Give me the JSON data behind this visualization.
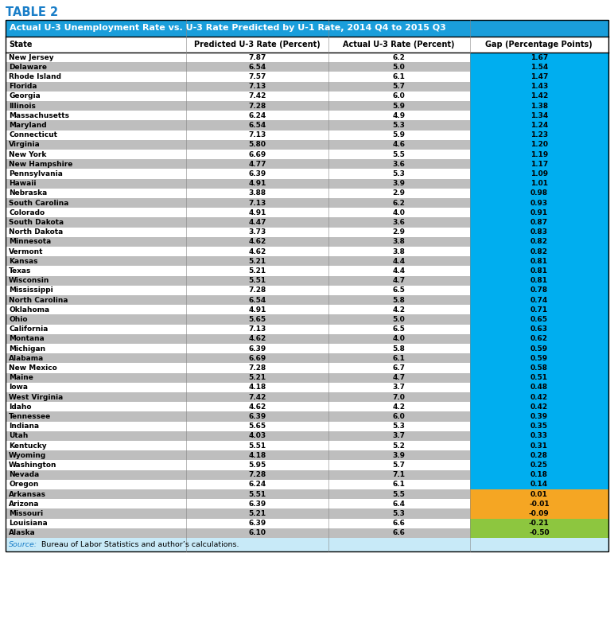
{
  "table_label": "TABLE 2",
  "title": "Actual U-3 Unemployment Rate vs. U-3 Rate Predicted by U-1 Rate, 2014 Q4 to 2015 Q3",
  "col_headers": [
    "State",
    "Predicted U-3 Rate (Percent)",
    "Actual U-3 Rate (Percent)",
    "Gap (Percentage Points)"
  ],
  "source": "Source: Bureau of Labor Statistics and author’s calculations.",
  "rows": [
    [
      "New Jersey",
      "7.87",
      "6.2",
      "1.67"
    ],
    [
      "Delaware",
      "6.54",
      "5.0",
      "1.54"
    ],
    [
      "Rhode Island",
      "7.57",
      "6.1",
      "1.47"
    ],
    [
      "Florida",
      "7.13",
      "5.7",
      "1.43"
    ],
    [
      "Georgia",
      "7.42",
      "6.0",
      "1.42"
    ],
    [
      "Illinois",
      "7.28",
      "5.9",
      "1.38"
    ],
    [
      "Massachusetts",
      "6.24",
      "4.9",
      "1.34"
    ],
    [
      "Maryland",
      "6.54",
      "5.3",
      "1.24"
    ],
    [
      "Connecticut",
      "7.13",
      "5.9",
      "1.23"
    ],
    [
      "Virginia",
      "5.80",
      "4.6",
      "1.20"
    ],
    [
      "New York",
      "6.69",
      "5.5",
      "1.19"
    ],
    [
      "New Hampshire",
      "4.77",
      "3.6",
      "1.17"
    ],
    [
      "Pennsylvania",
      "6.39",
      "5.3",
      "1.09"
    ],
    [
      "Hawaii",
      "4.91",
      "3.9",
      "1.01"
    ],
    [
      "Nebraska",
      "3.88",
      "2.9",
      "0.98"
    ],
    [
      "South Carolina",
      "7.13",
      "6.2",
      "0.93"
    ],
    [
      "Colorado",
      "4.91",
      "4.0",
      "0.91"
    ],
    [
      "South Dakota",
      "4.47",
      "3.6",
      "0.87"
    ],
    [
      "North Dakota",
      "3.73",
      "2.9",
      "0.83"
    ],
    [
      "Minnesota",
      "4.62",
      "3.8",
      "0.82"
    ],
    [
      "Vermont",
      "4.62",
      "3.8",
      "0.82"
    ],
    [
      "Kansas",
      "5.21",
      "4.4",
      "0.81"
    ],
    [
      "Texas",
      "5.21",
      "4.4",
      "0.81"
    ],
    [
      "Wisconsin",
      "5.51",
      "4.7",
      "0.81"
    ],
    [
      "Mississippi",
      "7.28",
      "6.5",
      "0.78"
    ],
    [
      "North Carolina",
      "6.54",
      "5.8",
      "0.74"
    ],
    [
      "Oklahoma",
      "4.91",
      "4.2",
      "0.71"
    ],
    [
      "Ohio",
      "5.65",
      "5.0",
      "0.65"
    ],
    [
      "California",
      "7.13",
      "6.5",
      "0.63"
    ],
    [
      "Montana",
      "4.62",
      "4.0",
      "0.62"
    ],
    [
      "Michigan",
      "6.39",
      "5.8",
      "0.59"
    ],
    [
      "Alabama",
      "6.69",
      "6.1",
      "0.59"
    ],
    [
      "New Mexico",
      "7.28",
      "6.7",
      "0.58"
    ],
    [
      "Maine",
      "5.21",
      "4.7",
      "0.51"
    ],
    [
      "Iowa",
      "4.18",
      "3.7",
      "0.48"
    ],
    [
      "West Virginia",
      "7.42",
      "7.0",
      "0.42"
    ],
    [
      "Idaho",
      "4.62",
      "4.2",
      "0.42"
    ],
    [
      "Tennessee",
      "6.39",
      "6.0",
      "0.39"
    ],
    [
      "Indiana",
      "5.65",
      "5.3",
      "0.35"
    ],
    [
      "Utah",
      "4.03",
      "3.7",
      "0.33"
    ],
    [
      "Kentucky",
      "5.51",
      "5.2",
      "0.31"
    ],
    [
      "Wyoming",
      "4.18",
      "3.9",
      "0.28"
    ],
    [
      "Washington",
      "5.95",
      "5.7",
      "0.25"
    ],
    [
      "Nevada",
      "7.28",
      "7.1",
      "0.18"
    ],
    [
      "Oregon",
      "6.24",
      "6.1",
      "0.14"
    ],
    [
      "Arkansas",
      "5.51",
      "5.5",
      "0.01"
    ],
    [
      "Arizona",
      "6.39",
      "6.4",
      "-0.01"
    ],
    [
      "Missouri",
      "5.21",
      "5.3",
      "-0.09"
    ],
    [
      "Louisiana",
      "6.39",
      "6.6",
      "-0.21"
    ],
    [
      "Alaska",
      "6.10",
      "6.6",
      "-0.50"
    ]
  ],
  "gap_values": [
    1.67,
    1.54,
    1.47,
    1.43,
    1.42,
    1.38,
    1.34,
    1.24,
    1.23,
    1.2,
    1.19,
    1.17,
    1.09,
    1.01,
    0.98,
    0.93,
    0.91,
    0.87,
    0.83,
    0.82,
    0.82,
    0.81,
    0.81,
    0.81,
    0.78,
    0.74,
    0.71,
    0.65,
    0.63,
    0.62,
    0.59,
    0.59,
    0.58,
    0.51,
    0.48,
    0.42,
    0.42,
    0.39,
    0.35,
    0.33,
    0.31,
    0.28,
    0.25,
    0.18,
    0.14,
    0.01,
    -0.01,
    -0.09,
    -0.21,
    -0.5
  ],
  "colors": {
    "table_label_text": "#1A7EC8",
    "title_bg": "#1A9EDB",
    "title_text": "#FFFFFF",
    "header_text": "#000000",
    "row_odd_bg": "#FFFFFF",
    "row_even_bg": "#BEBEBE",
    "gap_blue": "#00AEEF",
    "gap_orange": "#F5A623",
    "gap_green": "#8DC63F",
    "source_bg": "#C8EAF8",
    "source_text_label": "#1A7EC8",
    "source_text_plain": "#000000"
  },
  "figsize": [
    7.72,
    7.98
  ],
  "dpi": 100
}
